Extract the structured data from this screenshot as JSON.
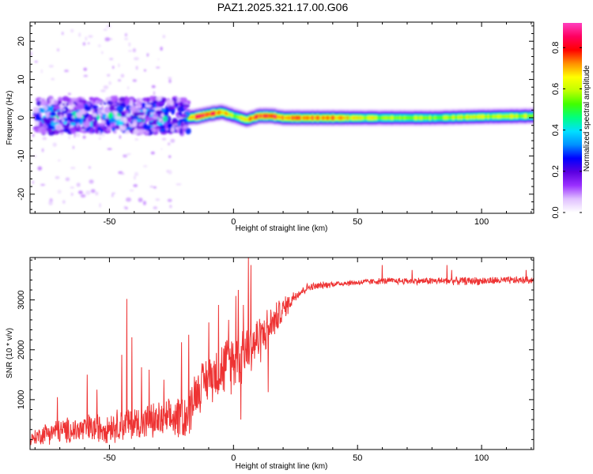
{
  "title": "PAZ1.2025.321.17.00.G06",
  "chart_data": [
    {
      "type": "heatmap",
      "title": "PAZ1.2025.321.17.00.G06",
      "xlabel": "Height of straight line (km)",
      "ylabel": "Frequency (Hz)",
      "xlim": [
        -82,
        121
      ],
      "ylim": [
        -25,
        25
      ],
      "xticks": [
        -50,
        0,
        50,
        100
      ],
      "xtick_labels": [
        "-50",
        "0",
        "50",
        "100"
      ],
      "yticks": [
        -20,
        -10,
        0,
        10,
        20
      ],
      "ytick_labels": [
        "-20",
        "-10",
        "0",
        "10",
        "20"
      ],
      "colorbar": {
        "label": "Normalized spectral amplitude",
        "range": [
          0,
          0.92
        ],
        "ticks": [
          0.0,
          0.2,
          0.4,
          0.6,
          0.8
        ],
        "tick_labels": [
          "0.0",
          "0.2",
          "0.4",
          "0.6",
          "0.8"
        ],
        "colormap": [
          "#ffffff",
          "#e0c0ff",
          "#9b30ff",
          "#5a00e0",
          "#0000ff",
          "#0090ff",
          "#00e0ff",
          "#00ff80",
          "#40ff00",
          "#c0ff00",
          "#ffff00",
          "#ff9000",
          "#ff0000",
          "#ff0060",
          "#ff40c0"
        ]
      },
      "ridge": {
        "description_x": [
          -20,
          -15,
          -10,
          -5,
          0,
          5,
          10,
          15,
          20,
          40,
          60,
          80,
          100,
          121
        ],
        "center_freq": [
          0,
          0.3,
          1.0,
          1.5,
          0.5,
          -0.5,
          0.5,
          0.5,
          0,
          0,
          0,
          0,
          0.3,
          0.5
        ],
        "peak_amplitude": [
          0.5,
          0.85,
          0.85,
          0.75,
          0.6,
          0.7,
          0.85,
          0.85,
          0.8,
          0.75,
          0.6,
          0.6,
          0.65,
          0.6
        ]
      },
      "scatter_region": {
        "x_range": [
          -80,
          -18
        ],
        "freq_range": [
          -4,
          5
        ],
        "max_amplitude": 0.5
      }
    },
    {
      "type": "line",
      "xlabel": "Height of straight line (km)",
      "ylabel": "SNR (10 * v/v)",
      "xlim": [
        -82,
        121
      ],
      "ylim": [
        0,
        3850
      ],
      "xticks": [
        -50,
        0,
        50,
        100
      ],
      "xtick_labels": [
        "-50",
        "0",
        "50",
        "100"
      ],
      "yticks": [
        1000,
        2000,
        3000
      ],
      "ytick_labels": [
        "1000",
        "2000",
        "3000"
      ],
      "color": "#ee3333",
      "envelope": {
        "x": [
          -82,
          -75,
          -60,
          -45,
          -35,
          -25,
          -18,
          -16,
          -10,
          -5,
          0,
          5,
          10,
          15,
          20,
          25,
          30,
          40,
          60,
          80,
          100,
          121
        ],
        "mean": [
          200,
          350,
          400,
          500,
          550,
          600,
          700,
          1100,
          1450,
          1600,
          1800,
          2000,
          2200,
          2500,
          2800,
          3100,
          3250,
          3320,
          3380,
          3380,
          3380,
          3400
        ],
        "spread": [
          120,
          220,
          280,
          320,
          350,
          380,
          500,
          450,
          450,
          550,
          600,
          600,
          500,
          350,
          250,
          120,
          80,
          60,
          60,
          70,
          80,
          70
        ]
      },
      "spikes": [
        {
          "x": -71,
          "y": 1050
        },
        {
          "x": -59,
          "y": 1500
        },
        {
          "x": -55,
          "y": 1200
        },
        {
          "x": -45,
          "y": 1900
        },
        {
          "x": -43,
          "y": 3020
        },
        {
          "x": -41,
          "y": 2250
        },
        {
          "x": -37,
          "y": 1650
        },
        {
          "x": -34,
          "y": 1600
        },
        {
          "x": -28,
          "y": 1400
        },
        {
          "x": -21,
          "y": 2150
        },
        {
          "x": -18,
          "y": 2300
        },
        {
          "x": -10,
          "y": 2550
        },
        {
          "x": -6,
          "y": 2900
        },
        {
          "x": -2,
          "y": 2600
        },
        {
          "x": 1,
          "y": 3080
        },
        {
          "x": 2,
          "y": 3200
        },
        {
          "x": 4,
          "y": 2900
        },
        {
          "x": 6,
          "y": 3850
        },
        {
          "x": 7,
          "y": 3700
        },
        {
          "x": 3,
          "y": 600
        },
        {
          "x": 14,
          "y": 1150
        },
        {
          "x": 60,
          "y": 3700
        },
        {
          "x": 72,
          "y": 3600
        },
        {
          "x": 86,
          "y": 3700
        },
        {
          "x": 88,
          "y": 3600
        },
        {
          "x": 118,
          "y": 3600
        }
      ]
    }
  ]
}
